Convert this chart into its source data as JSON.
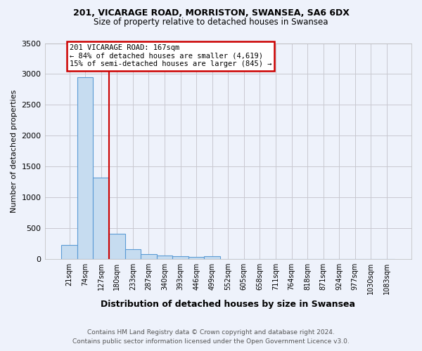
{
  "title_line1": "201, VICARAGE ROAD, MORRISTON, SWANSEA, SA6 6DX",
  "title_line2": "Size of property relative to detached houses in Swansea",
  "xlabel": "Distribution of detached houses by size in Swansea",
  "ylabel": "Number of detached properties",
  "footer_line1": "Contains HM Land Registry data © Crown copyright and database right 2024.",
  "footer_line2": "Contains public sector information licensed under the Open Government Licence v3.0.",
  "categories": [
    "21sqm",
    "74sqm",
    "127sqm",
    "180sqm",
    "233sqm",
    "287sqm",
    "340sqm",
    "393sqm",
    "446sqm",
    "499sqm",
    "552sqm",
    "605sqm",
    "658sqm",
    "711sqm",
    "764sqm",
    "818sqm",
    "871sqm",
    "924sqm",
    "977sqm",
    "1030sqm",
    "1083sqm"
  ],
  "values": [
    220,
    2950,
    1320,
    400,
    160,
    75,
    50,
    35,
    25,
    35,
    0,
    0,
    0,
    0,
    0,
    0,
    0,
    0,
    0,
    0,
    0
  ],
  "bar_color": "#c6dcf0",
  "bar_edge_color": "#5b9bd5",
  "vline_x": 2.5,
  "annotation_title": "201 VICARAGE ROAD: 167sqm",
  "annotation_line1": "← 84% of detached houses are smaller (4,619)",
  "annotation_line2": "15% of semi-detached houses are larger (845) →",
  "annotation_box_color": "#ffffff",
  "annotation_box_edge_color": "#cc0000",
  "vline_color": "#cc0000",
  "grid_color": "#c8c8d0",
  "background_color": "#eef2fb",
  "ylim": [
    0,
    3500
  ],
  "yticks": [
    0,
    500,
    1000,
    1500,
    2000,
    2500,
    3000,
    3500
  ]
}
